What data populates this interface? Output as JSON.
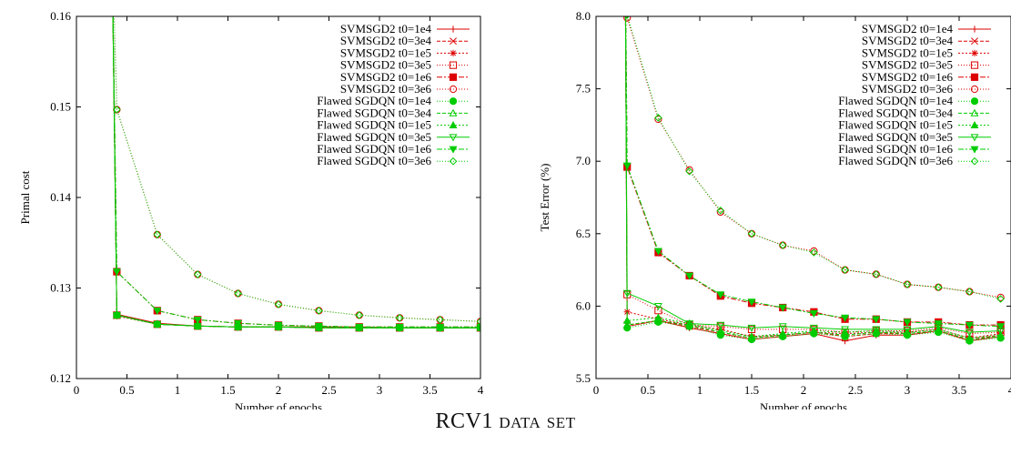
{
  "caption": "RCV1 data set",
  "styles": [
    {
      "color": "#dd0000",
      "marker": "plus",
      "dash": ""
    },
    {
      "color": "#dd0000",
      "marker": "x",
      "dash": "4,2"
    },
    {
      "color": "#dd0000",
      "marker": "star",
      "dash": "2,2"
    },
    {
      "color": "#dd0000",
      "marker": "square-open",
      "dash": "1,2"
    },
    {
      "color": "#dd0000",
      "marker": "square-filled",
      "dash": "6,2,2,2"
    },
    {
      "color": "#dd0000",
      "marker": "circle-open",
      "dash": "1,2"
    },
    {
      "color": "#00cc00",
      "marker": "circle-filled",
      "dash": "1,2"
    },
    {
      "color": "#00cc00",
      "marker": "triangle-open",
      "dash": "4,2"
    },
    {
      "color": "#00cc00",
      "marker": "triangle-filled",
      "dash": "2,2"
    },
    {
      "color": "#00cc00",
      "marker": "tri-down-open",
      "dash": ""
    },
    {
      "color": "#00cc00",
      "marker": "tri-down-filled",
      "dash": "6,2,2,2"
    },
    {
      "color": "#00cc00",
      "marker": "diamond-open",
      "dash": "1,2"
    }
  ],
  "chart_data": [
    {
      "type": "line",
      "xlabel": "Number of epochs",
      "ylabel": "Primal cost",
      "xlim": [
        0,
        4
      ],
      "ylim": [
        0.12,
        0.16
      ],
      "xticks": [
        {
          "v": 0,
          "label": "0"
        },
        {
          "v": 0.5,
          "label": "0.5"
        },
        {
          "v": 1,
          "label": "1"
        },
        {
          "v": 1.5,
          "label": "1.5"
        },
        {
          "v": 2,
          "label": "2"
        },
        {
          "v": 2.5,
          "label": "2.5"
        },
        {
          "v": 3,
          "label": "3"
        },
        {
          "v": 3.5,
          "label": "3.5"
        },
        {
          "v": 4,
          "label": "4"
        }
      ],
      "yticks": [
        {
          "v": 0.12,
          "label": "0.12"
        },
        {
          "v": 0.13,
          "label": "0.13"
        },
        {
          "v": 0.14,
          "label": "0.14"
        },
        {
          "v": 0.15,
          "label": "0.15"
        },
        {
          "v": 0.16,
          "label": "0.16"
        }
      ],
      "legend_position": "top-right",
      "x": [
        0.4,
        0.8,
        1.2,
        1.6,
        2.0,
        2.4,
        2.8,
        3.2,
        3.6,
        4.0
      ],
      "spike": {
        "x": 0.35,
        "y": 0.17
      },
      "series": [
        {
          "name": "SVMSGD2 t0=1e4",
          "values": [
            0.1271,
            0.1261,
            0.1258,
            0.1257,
            0.1257,
            0.1257,
            0.1257,
            0.1256,
            0.1256,
            0.1256
          ]
        },
        {
          "name": "SVMSGD2 t0=3e4",
          "values": [
            0.127,
            0.126,
            0.1258,
            0.1257,
            0.1257,
            0.1256,
            0.1256,
            0.1256,
            0.1256,
            0.1256
          ]
        },
        {
          "name": "SVMSGD2 t0=1e5",
          "values": [
            0.1269,
            0.126,
            0.1258,
            0.1257,
            0.1257,
            0.1256,
            0.1256,
            0.1256,
            0.1256,
            0.1256
          ]
        },
        {
          "name": "SVMSGD2 t0=3e5",
          "values": [
            0.127,
            0.126,
            0.1258,
            0.1257,
            0.1257,
            0.1256,
            0.1256,
            0.1256,
            0.1256,
            0.1256
          ]
        },
        {
          "name": "SVMSGD2 t0=1e6",
          "values": [
            0.1318,
            0.1275,
            0.1265,
            0.1261,
            0.1259,
            0.1258,
            0.1257,
            0.1257,
            0.1257,
            0.1257
          ]
        },
        {
          "name": "SVMSGD2 t0=3e6",
          "values": [
            0.1497,
            0.1359,
            0.1315,
            0.1294,
            0.1282,
            0.1275,
            0.127,
            0.1267,
            0.1265,
            0.1263
          ]
        },
        {
          "name": "Flawed SGDQN t0=1e4",
          "values": [
            0.127,
            0.126,
            0.1258,
            0.1257,
            0.1257,
            0.1257,
            0.1256,
            0.1256,
            0.1256,
            0.1256
          ]
        },
        {
          "name": "Flawed SGDQN t0=3e4",
          "values": [
            0.127,
            0.126,
            0.1258,
            0.1257,
            0.1257,
            0.1256,
            0.1256,
            0.1256,
            0.1256,
            0.1256
          ]
        },
        {
          "name": "Flawed SGDQN t0=1e5",
          "values": [
            0.127,
            0.126,
            0.1258,
            0.1257,
            0.1257,
            0.1256,
            0.1256,
            0.1256,
            0.1256,
            0.1256
          ]
        },
        {
          "name": "Flawed SGDQN t0=3e5",
          "values": [
            0.127,
            0.126,
            0.1258,
            0.1257,
            0.1257,
            0.1256,
            0.1256,
            0.1256,
            0.1256,
            0.1256
          ]
        },
        {
          "name": "Flawed SGDQN t0=1e6",
          "values": [
            0.1318,
            0.1275,
            0.1265,
            0.1261,
            0.1259,
            0.1258,
            0.1257,
            0.1257,
            0.1257,
            0.1257
          ]
        },
        {
          "name": "Flawed SGDQN t0=3e6",
          "values": [
            0.1497,
            0.1359,
            0.1315,
            0.1294,
            0.1282,
            0.1275,
            0.127,
            0.1267,
            0.1265,
            0.1263
          ]
        }
      ]
    },
    {
      "type": "line",
      "xlabel": "Number of epochs",
      "ylabel": "Test Error (%)",
      "xlim": [
        0,
        4
      ],
      "ylim": [
        5.5,
        8.0
      ],
      "xticks": [
        {
          "v": 0,
          "label": "0"
        },
        {
          "v": 0.5,
          "label": "0.5"
        },
        {
          "v": 1,
          "label": "1"
        },
        {
          "v": 1.5,
          "label": "1.5"
        },
        {
          "v": 2,
          "label": "2"
        },
        {
          "v": 2.5,
          "label": "2.5"
        },
        {
          "v": 3,
          "label": "3"
        },
        {
          "v": 3.5,
          "label": "3.5"
        },
        {
          "v": 4,
          "label": "4"
        }
      ],
      "yticks": [
        {
          "v": 5.5,
          "label": "5.5"
        },
        {
          "v": 6.0,
          "label": "6.0"
        },
        {
          "v": 6.5,
          "label": "6.5"
        },
        {
          "v": 7.0,
          "label": "7.0"
        },
        {
          "v": 7.5,
          "label": "7.5"
        },
        {
          "v": 8.0,
          "label": "8.0"
        }
      ],
      "legend_position": "top-right",
      "x": [
        0.3,
        0.6,
        0.9,
        1.2,
        1.5,
        1.8,
        2.1,
        2.4,
        2.7,
        3.0,
        3.3,
        3.6,
        3.9
      ],
      "spike": {
        "x": 0.28,
        "y": 8.6
      },
      "series": [
        {
          "name": "SVMSGD2 t0=1e4",
          "values": [
            5.86,
            5.9,
            5.85,
            5.81,
            5.77,
            5.79,
            5.81,
            5.76,
            5.8,
            5.8,
            5.83,
            5.76,
            5.79
          ]
        },
        {
          "name": "SVMSGD2 t0=3e4",
          "values": [
            5.87,
            5.9,
            5.86,
            5.82,
            5.78,
            5.8,
            5.82,
            5.79,
            5.81,
            5.81,
            5.83,
            5.77,
            5.8
          ]
        },
        {
          "name": "SVMSGD2 t0=1e5",
          "values": [
            5.96,
            5.91,
            5.87,
            5.84,
            5.79,
            5.8,
            5.82,
            5.81,
            5.82,
            5.82,
            5.84,
            5.78,
            5.81
          ]
        },
        {
          "name": "SVMSGD2 t0=3e5",
          "values": [
            6.08,
            5.97,
            5.87,
            5.86,
            5.84,
            5.84,
            5.84,
            5.82,
            5.83,
            5.83,
            5.85,
            5.81,
            5.82
          ]
        },
        {
          "name": "SVMSGD2 t0=1e6",
          "values": [
            6.96,
            6.37,
            6.21,
            6.07,
            6.02,
            5.99,
            5.96,
            5.91,
            5.91,
            5.89,
            5.89,
            5.87,
            5.87
          ]
        },
        {
          "name": "SVMSGD2 t0=3e6",
          "values": [
            7.99,
            7.29,
            6.94,
            6.65,
            6.5,
            6.42,
            6.38,
            6.25,
            6.22,
            6.15,
            6.13,
            6.1,
            6.06
          ]
        },
        {
          "name": "Flawed SGDQN t0=1e4",
          "values": [
            5.85,
            5.89,
            5.86,
            5.8,
            5.77,
            5.79,
            5.81,
            5.79,
            5.81,
            5.8,
            5.82,
            5.76,
            5.78
          ]
        },
        {
          "name": "Flawed SGDQN t0=3e4",
          "values": [
            5.87,
            5.9,
            5.87,
            5.82,
            5.78,
            5.8,
            5.82,
            5.8,
            5.82,
            5.81,
            5.83,
            5.77,
            5.79
          ]
        },
        {
          "name": "Flawed SGDQN t0=1e5",
          "values": [
            5.9,
            5.92,
            5.88,
            5.83,
            5.79,
            5.81,
            5.83,
            5.82,
            5.83,
            5.82,
            5.84,
            5.78,
            5.8
          ]
        },
        {
          "name": "Flawed SGDQN t0=3e5",
          "values": [
            6.09,
            6.0,
            5.88,
            5.87,
            5.85,
            5.86,
            5.85,
            5.84,
            5.84,
            5.84,
            5.86,
            5.82,
            5.83
          ]
        },
        {
          "name": "Flawed SGDQN t0=1e6",
          "values": [
            6.97,
            6.38,
            6.21,
            6.08,
            6.03,
            5.99,
            5.95,
            5.92,
            5.91,
            5.89,
            5.88,
            5.87,
            5.86
          ]
        },
        {
          "name": "Flawed SGDQN t0=3e6",
          "values": [
            8.01,
            7.3,
            6.93,
            6.66,
            6.5,
            6.42,
            6.37,
            6.25,
            6.22,
            6.15,
            6.13,
            6.1,
            6.05
          ]
        }
      ]
    }
  ]
}
